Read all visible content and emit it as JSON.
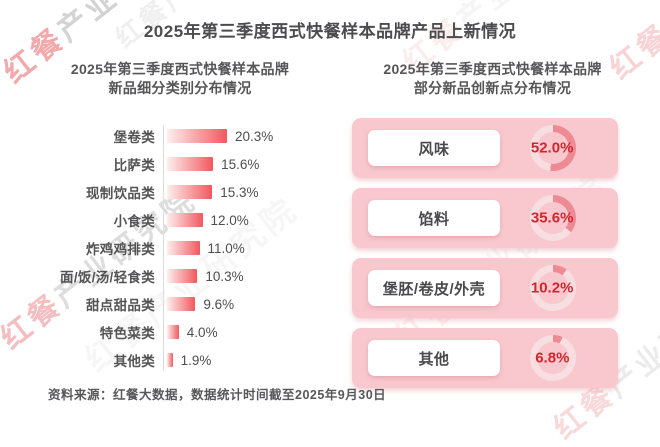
{
  "page": {
    "title": "2025年第三季度西式快餐样本品牌产品上新情况",
    "source_note": "资料来源：红餐大数据，数据统计时间截至2025年9月30日"
  },
  "watermark": {
    "text_brand": "红餐",
    "text_suffix": "产业研究院"
  },
  "colors": {
    "title_text": "#4c4c4e",
    "body_text": "#545456",
    "bar_gradient_start": "#fdefee",
    "bar_gradient_end": "#f1585f",
    "axis_line": "#dcdcdc",
    "card_pink": "#f8c8ce",
    "label_box_bg": "#ffffff",
    "percent_red": "#d2262e",
    "donut_fill": "#ee8a93",
    "donut_track": "#f6dee1",
    "watermark_red": "#e4555c",
    "watermark_grey": "#a8a8a8"
  },
  "chart_data": [
    {
      "type": "bar",
      "orientation": "horizontal",
      "title": "2025年第三季度西式快餐样本品牌新品细分类别分布情况",
      "title_lines": [
        "2025年第三季度西式快餐样本品牌",
        "新品细分类别分布情况"
      ],
      "categories": [
        "堡卷类",
        "比萨类",
        "现制饮品类",
        "小食类",
        "炸鸡鸡排类",
        "面/饭/汤/轻食类",
        "甜点甜品类",
        "特色菜类",
        "其他类"
      ],
      "values": [
        20.3,
        15.6,
        15.3,
        12.0,
        11.0,
        10.3,
        9.6,
        4.0,
        1.9
      ],
      "value_labels": [
        "20.3%",
        "15.6%",
        "15.3%",
        "12.0%",
        "11.0%",
        "10.3%",
        "9.6%",
        "4.0%",
        "1.9%"
      ],
      "xlabel": "",
      "ylabel": "",
      "xlim": [
        0,
        20.3
      ],
      "grid": false,
      "legend": false
    },
    {
      "type": "pie",
      "subtype": "donut-gauge-list",
      "title": "2025年第三季度西式快餐样本品牌部分新品创新点分布情况",
      "title_lines": [
        "2025年第三季度西式快餐样本品牌",
        "部分新品创新点分布情况"
      ],
      "items": [
        {
          "label": "风味",
          "value": 52.0,
          "value_label": "52.0%"
        },
        {
          "label": "馅料",
          "value": 35.6,
          "value_label": "35.6%"
        },
        {
          "label": "堡胚/卷皮/外壳",
          "value": 10.2,
          "value_label": "10.2%"
        },
        {
          "label": "其他",
          "value": 6.8,
          "value_label": "6.8%"
        }
      ]
    }
  ]
}
